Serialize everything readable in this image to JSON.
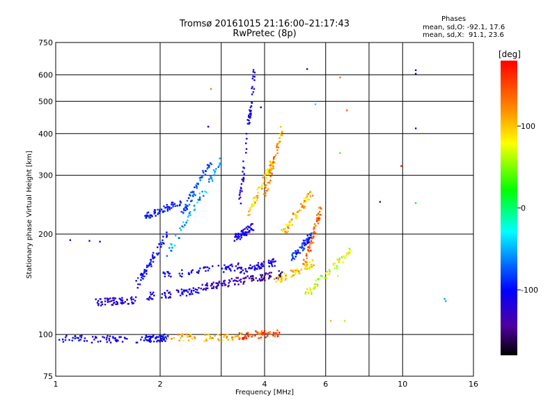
{
  "title_line1": "Tromsø 20161015 21:16:00–21:17:43",
  "title_line2": "RwPretec (8p)",
  "phases": {
    "heading": "Phases",
    "o_line": "mean, sd,O: -92.1, 17.6",
    "x_line": "mean, sd,X:  91.1, 23.6"
  },
  "colorbar": {
    "unit": "[deg]",
    "ticks": [
      100,
      0,
      -100
    ],
    "range": [
      -180,
      180
    ]
  },
  "colors": {
    "grid": "#000000",
    "background": "#ffffff"
  },
  "chart_data": {
    "type": "scatter",
    "xlabel": "Frequency [MHz]",
    "ylabel": "Stationary phase Virtual Height [km]",
    "xscale": "log",
    "yscale": "log",
    "xlim": [
      1,
      16
    ],
    "ylim": [
      75,
      750
    ],
    "xticks": [
      1,
      2,
      4,
      6,
      10,
      16
    ],
    "xgrid": [
      2,
      3,
      4,
      6,
      8,
      10
    ],
    "yticks": [
      75,
      100,
      200,
      300,
      400,
      500,
      600,
      750
    ],
    "ygrid": [
      100,
      200,
      300,
      400,
      500,
      600
    ],
    "grid": true,
    "traces": [
      {
        "x": [
          1.0,
          1.8
        ],
        "y": [
          97,
          97
        ],
        "phase": -95
      },
      {
        "x": [
          1.8,
          2.1
        ],
        "y": [
          97,
          98
        ],
        "phase": -85
      },
      {
        "x": [
          2.1,
          3.4
        ],
        "y": [
          98,
          98
        ],
        "phase": 120
      },
      {
        "x": [
          3.4,
          4.4
        ],
        "y": [
          99,
          101
        ],
        "phase": 155
      },
      {
        "x": [
          1.3,
          1.7
        ],
        "y": [
          125,
          127
        ],
        "phase": -105
      },
      {
        "x": [
          1.8,
          2.6
        ],
        "y": [
          130,
          135
        ],
        "phase": -95
      },
      {
        "x": [
          2.6,
          3.4
        ],
        "y": [
          138,
          145
        ],
        "phase": -120
      },
      {
        "x": [
          3.4,
          4.5
        ],
        "y": [
          145,
          152
        ],
        "phase": -140
      },
      {
        "x": [
          4.3,
          5.6
        ],
        "y": [
          145,
          165
        ],
        "phase": 110
      },
      {
        "x": [
          5.2,
          7.1
        ],
        "y": [
          130,
          180
        ],
        "phase": 90
      },
      {
        "x": [
          2.0,
          3.4
        ],
        "y": [
          150,
          160
        ],
        "phase": -90
      },
      {
        "x": [
          3.4,
          4.3
        ],
        "y": [
          155,
          165
        ],
        "phase": -100
      },
      {
        "x": [
          1.7,
          2.1
        ],
        "y": [
          140,
          200
        ],
        "phase": -80
      },
      {
        "x": [
          1.8,
          2.3
        ],
        "y": [
          225,
          250
        ],
        "phase": -75
      },
      {
        "x": [
          2.1,
          3.0
        ],
        "y": [
          175,
          330
        ],
        "phase": -30
      },
      {
        "x": [
          2.3,
          2.8
        ],
        "y": [
          230,
          330
        ],
        "phase": -55
      },
      {
        "x": [
          3.4,
          3.75
        ],
        "y": [
          250,
          640
        ],
        "phase": -95
      },
      {
        "x": [
          3.6,
          4.2
        ],
        "y": [
          230,
          330
        ],
        "phase": 115
      },
      {
        "x": [
          4.0,
          4.5
        ],
        "y": [
          260,
          420
        ],
        "phase": 130
      },
      {
        "x": [
          4.5,
          5.5
        ],
        "y": [
          200,
          270
        ],
        "phase": 120
      },
      {
        "x": [
          5.2,
          5.8
        ],
        "y": [
          160,
          240
        ],
        "phase": 145
      },
      {
        "x": [
          4.8,
          5.5
        ],
        "y": [
          170,
          200
        ],
        "phase": -70
      },
      {
        "x": [
          3.3,
          3.7
        ],
        "y": [
          195,
          210
        ],
        "phase": -95
      }
    ],
    "isolated": [
      {
        "x": 1.1,
        "y": 192,
        "phase": -95
      },
      {
        "x": 1.25,
        "y": 191,
        "phase": -95
      },
      {
        "x": 1.34,
        "y": 190,
        "phase": -95
      },
      {
        "x": 2.8,
        "y": 545,
        "phase": 140
      },
      {
        "x": 2.75,
        "y": 420,
        "phase": -90
      },
      {
        "x": 3.9,
        "y": 480,
        "phase": -90
      },
      {
        "x": 5.3,
        "y": 625,
        "phase": -100
      },
      {
        "x": 5.6,
        "y": 490,
        "phase": -10
      },
      {
        "x": 6.6,
        "y": 590,
        "phase": 140
      },
      {
        "x": 6.9,
        "y": 470,
        "phase": 150
      },
      {
        "x": 6.6,
        "y": 350,
        "phase": 60
      },
      {
        "x": 8.6,
        "y": 250,
        "phase": -120
      },
      {
        "x": 9.9,
        "y": 320,
        "phase": 175
      },
      {
        "x": 10.9,
        "y": 620,
        "phase": -95
      },
      {
        "x": 10.9,
        "y": 605,
        "phase": -90
      },
      {
        "x": 10.9,
        "y": 415,
        "phase": -95
      },
      {
        "x": 10.9,
        "y": 248,
        "phase": 40
      },
      {
        "x": 13.2,
        "y": 128,
        "phase": -30
      },
      {
        "x": 13.3,
        "y": 126,
        "phase": -20
      },
      {
        "x": 6.2,
        "y": 110,
        "phase": 120
      },
      {
        "x": 6.8,
        "y": 110,
        "phase": 80
      },
      {
        "x": 6.5,
        "y": 150,
        "phase": 90
      }
    ]
  }
}
